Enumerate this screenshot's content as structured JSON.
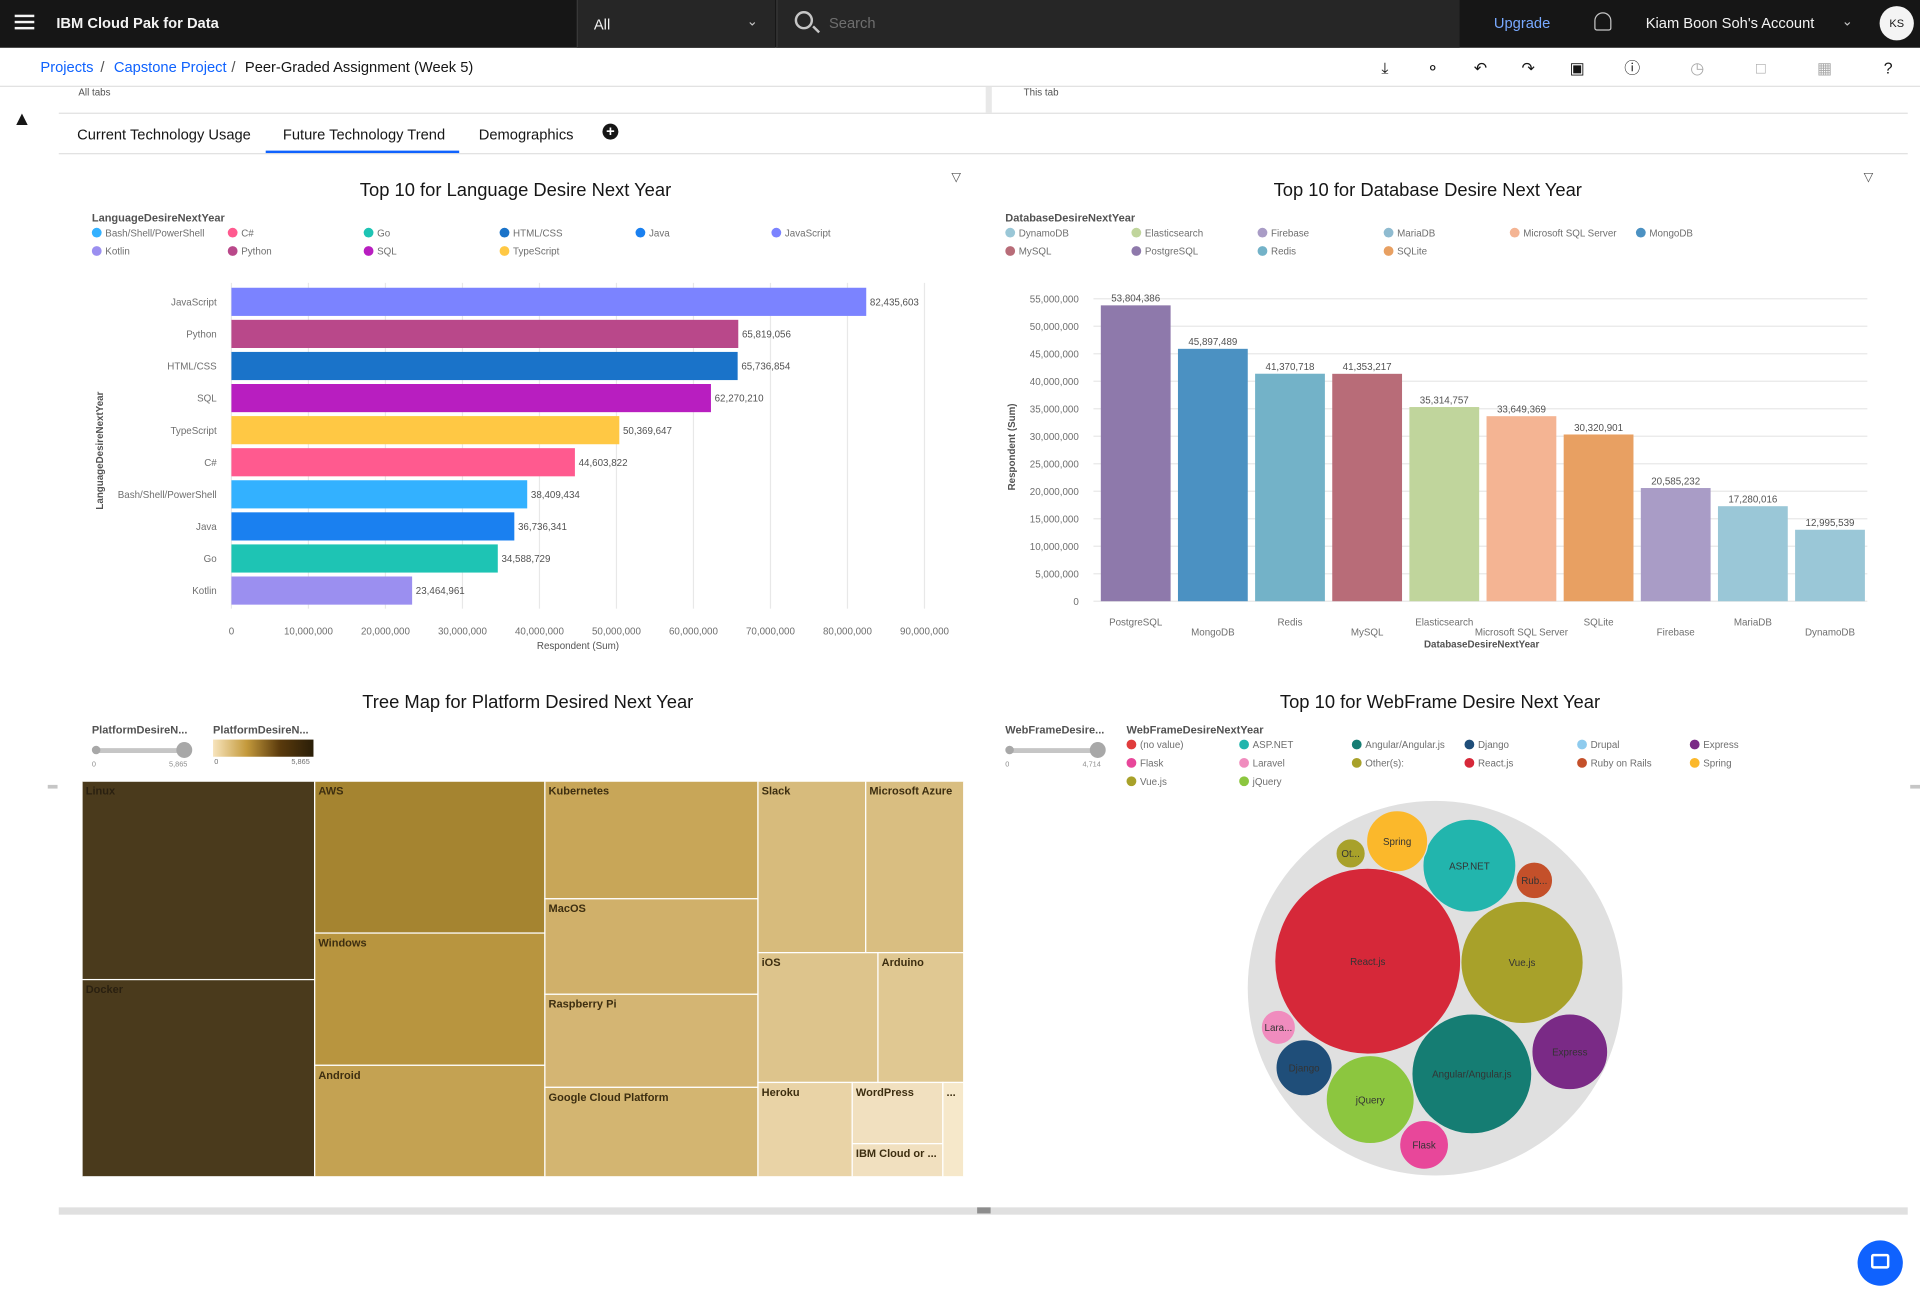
{
  "app": {
    "brand": "IBM Cloud Pak for Data",
    "scope": "All",
    "search_placeholder": "Search",
    "upgrade": "Upgrade",
    "account": "Kiam Boon Soh's Account",
    "avatar": "KS"
  },
  "breadcrumb": [
    "Projects",
    "Capstone Project",
    "Peer-Graded Assignment (Week 5)"
  ],
  "strip": {
    "left": "All tabs",
    "right": "This tab"
  },
  "tabs": [
    "Current Technology Usage",
    "Future Technology Trend",
    "Demographics"
  ],
  "active_tab": "Future Technology Trend",
  "chart_data": [
    {
      "type": "bar",
      "orientation": "horizontal",
      "title": "Top 10 for Language Desire Next Year",
      "legend_title": "LanguageDesireNextYear",
      "legend": [
        {
          "name": "Bash/Shell/PowerShell",
          "color": "#33b1ff"
        },
        {
          "name": "C#",
          "color": "#ff5a8f"
        },
        {
          "name": "Go",
          "color": "#1ec4b4"
        },
        {
          "name": "HTML/CSS",
          "color": "#1a73c9"
        },
        {
          "name": "Java",
          "color": "#1a80f0"
        },
        {
          "name": "JavaScript",
          "color": "#7b83ff"
        },
        {
          "name": "Kotlin",
          "color": "#9b8ff0"
        },
        {
          "name": "Python",
          "color": "#b9488a"
        },
        {
          "name": "SQL",
          "color": "#b81ec0"
        },
        {
          "name": "TypeScript",
          "color": "#ffc844"
        }
      ],
      "categories": [
        "JavaScript",
        "Python",
        "HTML/CSS",
        "SQL",
        "TypeScript",
        "C#",
        "Bash/Shell/PowerShell",
        "Java",
        "Go",
        "Kotlin"
      ],
      "values": [
        82435603,
        65819056,
        65736854,
        62270210,
        50369647,
        44603822,
        38409434,
        36736341,
        34588729,
        23464961
      ],
      "value_labels": [
        "82,435,603",
        "65,819,056",
        "65,736,854",
        "62,270,210",
        "50,369,647",
        "44,603,822",
        "38,409,434",
        "36,736,341",
        "34,588,729",
        "23,464,961"
      ],
      "colors": [
        "#7b83ff",
        "#b9488a",
        "#1a73c9",
        "#b81ec0",
        "#ffc844",
        "#ff5a8f",
        "#33b1ff",
        "#1a80f0",
        "#1ec4b4",
        "#9b8ff0"
      ],
      "xlim": [
        0,
        90000000
      ],
      "xticks": [
        0,
        10000000,
        20000000,
        30000000,
        40000000,
        50000000,
        60000000,
        70000000,
        80000000,
        90000000
      ],
      "xtick_labels": [
        "0",
        "10,000,000",
        "20,000,000",
        "30,000,000",
        "40,000,000",
        "50,000,000",
        "60,000,000",
        "70,000,000",
        "80,000,000",
        "90,000,000"
      ],
      "xlabel": "Respondent (Sum)",
      "ylabel": "LanguageDesireNextYear",
      "grid": true
    },
    {
      "type": "bar",
      "orientation": "vertical",
      "title": "Top 10 for Database Desire Next Year",
      "legend_title": "DatabaseDesireNextYear",
      "legend": [
        {
          "name": "DynamoDB",
          "color": "#9ac7d7"
        },
        {
          "name": "Elasticsearch",
          "color": "#c0d59c"
        },
        {
          "name": "Firebase",
          "color": "#a99cc6"
        },
        {
          "name": "MariaDB",
          "color": "#8fbbd0"
        },
        {
          "name": "Microsoft SQL Server",
          "color": "#f4b493"
        },
        {
          "name": "MongoDB",
          "color": "#4b91c2"
        },
        {
          "name": "MySQL",
          "color": "#b86c78"
        },
        {
          "name": "PostgreSQL",
          "color": "#8e79ab"
        },
        {
          "name": "Redis",
          "color": "#73b2c8"
        },
        {
          "name": "SQLite",
          "color": "#e8a062"
        }
      ],
      "categories": [
        "PostgreSQL",
        "MongoDB",
        "Redis",
        "MySQL",
        "Elasticsearch",
        "Microsoft SQL Server",
        "SQLite",
        "Firebase",
        "MariaDB",
        "DynamoDB"
      ],
      "values": [
        53804386,
        45897489,
        41370718,
        41353217,
        35314757,
        33649369,
        30320901,
        20585232,
        17280016,
        12995539
      ],
      "value_labels": [
        "53,804,386",
        "45,897,489",
        "41,370,718",
        "41,353,217",
        "35,314,757",
        "33,649,369",
        "30,320,901",
        "20,585,232",
        "17,280,016",
        "12,995,539"
      ],
      "colors": [
        "#8e79ab",
        "#4b91c2",
        "#73b2c8",
        "#b86c78",
        "#c0d59c",
        "#f4b493",
        "#e8a062",
        "#a99cc6",
        "#9ac7d7",
        "#9ac7d7"
      ],
      "ylim": [
        0,
        55000000
      ],
      "yticks": [
        0,
        5000000,
        10000000,
        15000000,
        20000000,
        25000000,
        30000000,
        35000000,
        40000000,
        45000000,
        50000000,
        55000000
      ],
      "ytick_labels": [
        "0",
        "5,000,000",
        "10,000,000",
        "15,000,000",
        "20,000,000",
        "25,000,000",
        "30,000,000",
        "35,000,000",
        "40,000,000",
        "45,000,000",
        "50,000,000",
        "55,000,000"
      ],
      "xlabel": "DatabaseDesireNextYear",
      "ylabel": "Respondent (Sum)",
      "grid": true
    },
    {
      "type": "treemap",
      "title": "Tree Map for Platform Desired Next Year",
      "legend_titles": [
        "PlatformDesireN...",
        "PlatformDesireN..."
      ],
      "range": [
        "0",
        "5,865"
      ],
      "items": [
        {
          "label": "Linux",
          "color": "#4a3a1c"
        },
        {
          "label": "Docker",
          "color": "#4a3a1c"
        },
        {
          "label": "AWS",
          "color": "#a58430"
        },
        {
          "label": "Windows",
          "color": "#b8953f"
        },
        {
          "label": "Android",
          "color": "#c4a252"
        },
        {
          "label": "Kubernetes",
          "color": "#c8a658"
        },
        {
          "label": "MacOS",
          "color": "#d0b06a"
        },
        {
          "label": "Raspberry Pi",
          "color": "#d4b573"
        },
        {
          "label": "Google Cloud Platform",
          "color": "#d3b571"
        },
        {
          "label": "Slack",
          "color": "#d7bb7c"
        },
        {
          "label": "Microsoft Azure",
          "color": "#d9be81"
        },
        {
          "label": "iOS",
          "color": "#ddc48c"
        },
        {
          "label": "Arduino",
          "color": "#e0c892"
        },
        {
          "label": "Heroku",
          "color": "#e9d3a6"
        },
        {
          "label": "WordPress",
          "color": "#f1e0bf"
        },
        {
          "label": "IBM Cloud or ...",
          "color": "#f1e0bf"
        },
        {
          "label": "...",
          "color": "#f6e8ca"
        }
      ]
    },
    {
      "type": "bubble",
      "title": "Top 10 for WebFrame Desire Next Year",
      "legend_titles": [
        "WebFrameDesire...",
        "WebFrameDesireNextYear"
      ],
      "range": [
        "0",
        "4,714"
      ],
      "legend": [
        {
          "name": "(no value)",
          "color": "#e03c3c"
        },
        {
          "name": "ASP.NET",
          "color": "#22b5ad"
        },
        {
          "name": "Angular/Angular.js",
          "color": "#157d73"
        },
        {
          "name": "Django",
          "color": "#1f4e79"
        },
        {
          "name": "Drupal",
          "color": "#8ecbee"
        },
        {
          "name": "Express",
          "color": "#7a2a86"
        },
        {
          "name": "Flask",
          "color": "#e8479a"
        },
        {
          "name": "Laravel",
          "color": "#f08cbe"
        },
        {
          "name": "Other(s):",
          "color": "#a8a12a"
        },
        {
          "name": "React.js",
          "color": "#d62839"
        },
        {
          "name": "Ruby on Rails",
          "color": "#c4502a"
        },
        {
          "name": "Spring",
          "color": "#fbb82b"
        },
        {
          "name": "Vue.js",
          "color": "#a8a12a"
        },
        {
          "name": "jQuery",
          "color": "#8cc63f"
        }
      ],
      "bubbles": [
        {
          "label": "React.js",
          "color": "#d62839"
        },
        {
          "label": "Vue.js",
          "color": "#a8a12a"
        },
        {
          "label": "Angular/Angular.js",
          "color": "#157d73"
        },
        {
          "label": "ASP.NET",
          "color": "#22b5ad"
        },
        {
          "label": "jQuery",
          "color": "#8cc63f"
        },
        {
          "label": "Express",
          "color": "#7a2a86"
        },
        {
          "label": "Spring",
          "color": "#fbb82b"
        },
        {
          "label": "Django",
          "color": "#1f4e79"
        },
        {
          "label": "Flask",
          "color": "#e8479a"
        },
        {
          "label": "Rub...",
          "color": "#c4502a"
        },
        {
          "label": "Lara...",
          "color": "#f08cbe"
        },
        {
          "label": "Ot...",
          "color": "#a8a12a"
        }
      ]
    }
  ]
}
